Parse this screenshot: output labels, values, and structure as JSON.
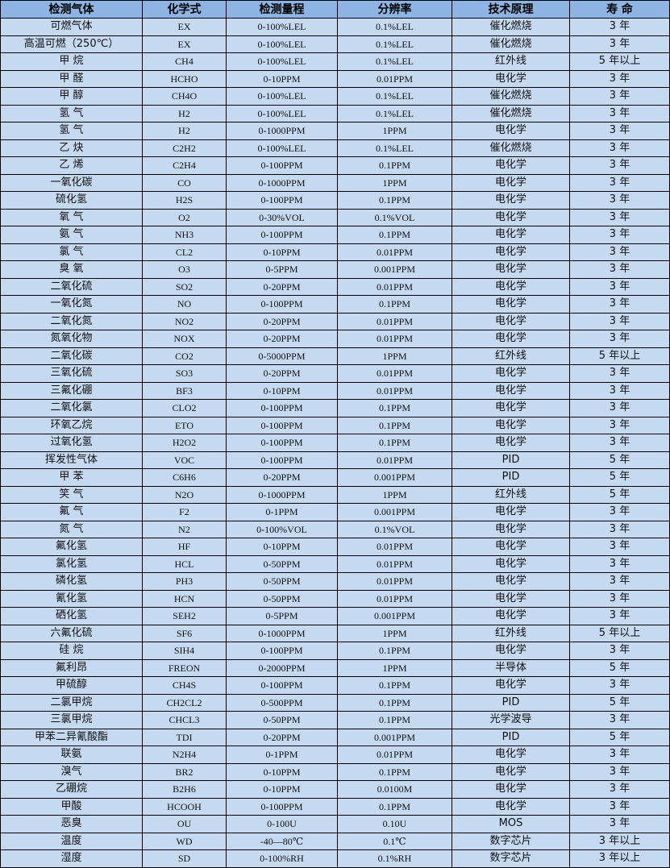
{
  "colors": {
    "header_bg": "#8DB4E2",
    "row_bg": "#C5D9F1",
    "border": "#000000"
  },
  "headers": [
    "检测气体",
    "化学式",
    "检测量程",
    "分辨率",
    "技术原理",
    "寿 命"
  ],
  "rows": [
    [
      "可燃气体",
      "EX",
      "0-100%LEL",
      "0.1%LEL",
      "催化燃烧",
      "3 年"
    ],
    [
      "高温可燃（250℃）",
      "EX",
      "0-100%LEL",
      "0.1%LEL",
      "催化燃烧",
      "3 年"
    ],
    [
      "甲 烷",
      "CH4",
      "0-100%LEL",
      "0.1%LEL",
      "红外线",
      "5 年以上"
    ],
    [
      "甲 醛",
      "HCHO",
      "0-10PPM",
      "0.01PPM",
      "电化学",
      "3 年"
    ],
    [
      "甲 醇",
      "CH4O",
      "0-100%LEL",
      "0.1%LEL",
      "催化燃烧",
      "3 年"
    ],
    [
      "氢 气",
      "H2",
      "0-100%LEL",
      "0.1%LEL",
      "催化燃烧",
      "3 年"
    ],
    [
      "氢 气",
      "H2",
      "0-1000PPM",
      "1PPM",
      "电化学",
      "3 年"
    ],
    [
      "乙 炔",
      "C2H2",
      "0-100%LEL",
      "0.1%LEL",
      "催化燃烧",
      "3 年"
    ],
    [
      "乙 烯",
      "C2H4",
      "0-100PPM",
      "0.1PPM",
      "电化学",
      "3 年"
    ],
    [
      "一氧化碳",
      "CO",
      "0-1000PPM",
      "1PPM",
      "电化学",
      "3 年"
    ],
    [
      "硫化氢",
      "H2S",
      "0-100PPM",
      "0.1PPM",
      "电化学",
      "3 年"
    ],
    [
      "氧 气",
      "O2",
      "0-30%VOL",
      "0.1%VOL",
      "电化学",
      "3 年"
    ],
    [
      "氨 气",
      "NH3",
      "0-100PPM",
      "0.1PPM",
      "电化学",
      "3 年"
    ],
    [
      "氯 气",
      "CL2",
      "0-10PPM",
      "0.01PPM",
      "电化学",
      "3 年"
    ],
    [
      "臭 氧",
      "O3",
      "0-5PPM",
      "0.001PPM",
      "电化学",
      "3 年"
    ],
    [
      "二氧化硫",
      "SO2",
      "0-20PPM",
      "0.01PPM",
      "电化学",
      "3 年"
    ],
    [
      "一氧化氮",
      "NO",
      "0-100PPM",
      "0.1PPM",
      "电化学",
      "3 年"
    ],
    [
      "二氧化氮",
      "NO2",
      "0-20PPM",
      "0.01PPM",
      "电化学",
      "3 年"
    ],
    [
      "氮氧化物",
      "NOX",
      "0-20PPM",
      "0.01PPM",
      "电化学",
      "3 年"
    ],
    [
      "二氧化碳",
      "CO2",
      "0-5000PPM",
      "1PPM",
      "红外线",
      "5 年以上"
    ],
    [
      "三氧化硫",
      "SO3",
      "0-20PPM",
      "0.01PPM",
      "电化学",
      "3 年"
    ],
    [
      "三氟化硼",
      "BF3",
      "0-10PPM",
      "0.01PPM",
      "电化学",
      "3 年"
    ],
    [
      "二氧化氯",
      "CLO2",
      "0-100PPM",
      "0.1PPM",
      "电化学",
      "3 年"
    ],
    [
      "环氧乙烷",
      "ETO",
      "0-100PPM",
      "0.1PPM",
      "电化学",
      "3 年"
    ],
    [
      "过氧化氢",
      "H2O2",
      "0-100PPM",
      "0.1PPM",
      "电化学",
      "3 年"
    ],
    [
      "挥发性气体",
      "VOC",
      "0-100PPM",
      "0.01PPM",
      "PID",
      "5 年"
    ],
    [
      "甲 苯",
      "C6H6",
      "0-20PPM",
      "0.001PPM",
      "PID",
      "5 年"
    ],
    [
      "笑 气",
      "N2O",
      "0-1000PPM",
      "1PPM",
      "红外线",
      "5 年"
    ],
    [
      "氟 气",
      "F2",
      "0-1PPM",
      "0.001PPM",
      "电化学",
      "3 年"
    ],
    [
      "氮 气",
      "N2",
      "0-100%VOL",
      "0.1%VOL",
      "电化学",
      "3 年"
    ],
    [
      "氟化氢",
      "HF",
      "0-10PPM",
      "0.01PPM",
      "电化学",
      "3 年"
    ],
    [
      "氯化氢",
      "HCL",
      "0-50PPM",
      "0.01PPM",
      "电化学",
      "3 年"
    ],
    [
      "磷化氢",
      "PH3",
      "0-50PPM",
      "0.01PPM",
      "电化学",
      "3 年"
    ],
    [
      "氰化氢",
      "HCN",
      "0-50PPM",
      "0.01PPM",
      "电化学",
      "3 年"
    ],
    [
      "硒化氢",
      "SEH2",
      "0-5PPM",
      "0.001PPM",
      "电化学",
      "3 年"
    ],
    [
      "六氟化硫",
      "SF6",
      "0-1000PPM",
      "1PPM",
      "红外线",
      "5 年以上"
    ],
    [
      "硅 烷",
      "SIH4",
      "0-100PPM",
      "0.1PPM",
      "电化学",
      "3 年"
    ],
    [
      "氟利昂",
      "FREON",
      "0-2000PPM",
      "1PPM",
      "半导体",
      "5 年"
    ],
    [
      "甲硫醇",
      "CH4S",
      "0-100PPM",
      "0.1PPM",
      "电化学",
      "3 年"
    ],
    [
      "二氯甲烷",
      "CH2CL2",
      "0-500PPM",
      "0.1PPM",
      "PID",
      "5 年"
    ],
    [
      "三氯甲烷",
      "CHCL3",
      "0-50PPM",
      "0.1PPM",
      "光学波导",
      "3 年"
    ],
    [
      "甲苯二异氰酸酯",
      "TDI",
      "0-20PPM",
      "0.001PPM",
      "PID",
      "5 年"
    ],
    [
      "联氨",
      "N2H4",
      "0-1PPM",
      "0.01PPM",
      "电化学",
      "3 年"
    ],
    [
      "溴气",
      "BR2",
      "0-10PPM",
      "0.1PPM",
      "电化学",
      "3 年"
    ],
    [
      "乙硼烷",
      "B2H6",
      "0-10PPM",
      "0.0100M",
      "电化学",
      "3 年"
    ],
    [
      "甲酸",
      "HCOOH",
      "0-100PPM",
      "0.1PPM",
      "电化学",
      "3 年"
    ],
    [
      "恶臭",
      "OU",
      "0-100U",
      "0.10U",
      "MOS",
      "3 年"
    ],
    [
      "温度",
      "WD",
      "-40—80℃",
      "0.1℃",
      "数字芯片",
      "3 年以上"
    ],
    [
      "湿度",
      "SD",
      "0-100%RH",
      "0.1%RH",
      "数字芯片",
      "3 年以上"
    ]
  ]
}
